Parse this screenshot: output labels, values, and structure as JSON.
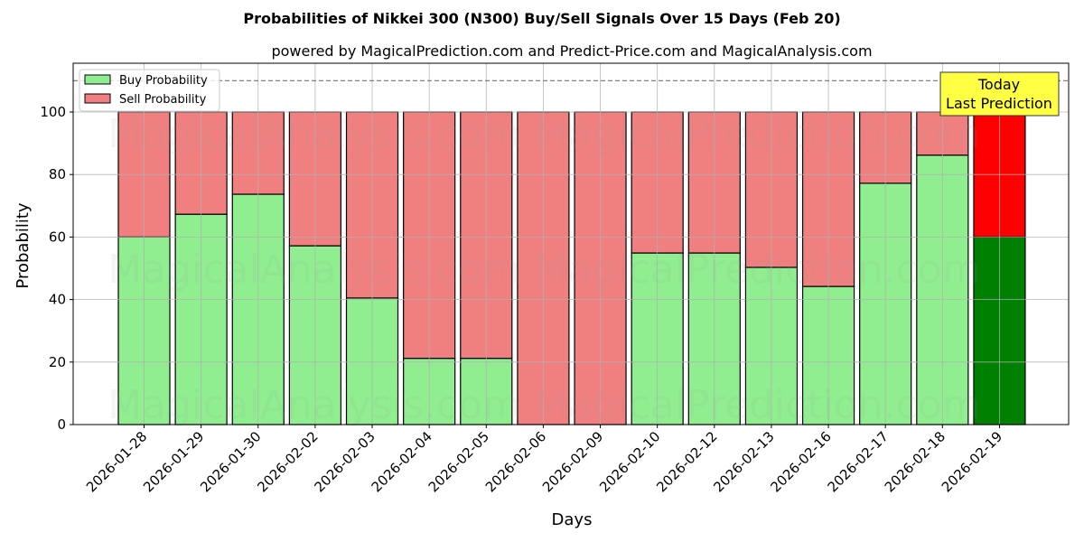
{
  "chart_data": {
    "type": "bar",
    "stacked": true,
    "title": "Probabilities of Nikkei 300 (N300) Buy/Sell Signals Over 15 Days (Feb 20)",
    "subtitle": "powered by MagicalPrediction.com and Predict-Price.com and MagicalAnalysis.com",
    "xlabel": "Days",
    "ylabel": "Probability",
    "ylim": [
      0,
      115
    ],
    "yticks": [
      0,
      20,
      40,
      60,
      80,
      100
    ],
    "grid": true,
    "legend_position": "upper left",
    "reference_line": {
      "y": 110,
      "style": "dashed",
      "color": "#808080"
    },
    "categories": [
      "2026-01-28",
      "2026-01-29",
      "2026-01-30",
      "2026-02-02",
      "2026-02-03",
      "2026-02-04",
      "2026-02-05",
      "2026-02-06",
      "2026-02-09",
      "2026-02-10",
      "2026-02-12",
      "2026-02-13",
      "2026-02-16",
      "2026-02-17",
      "2026-02-18",
      "2026-02-19"
    ],
    "series": [
      {
        "name": "Buy Probability",
        "color": "#90ee90",
        "values": [
          60.0,
          67.3,
          73.7,
          57.2,
          40.5,
          21.2,
          21.2,
          0,
          0,
          54.9,
          54.9,
          50.3,
          44.2,
          77.2,
          86.2,
          60.0
        ]
      },
      {
        "name": "Sell Probability",
        "color": "#f08080",
        "values": [
          40.0,
          32.7,
          26.3,
          42.8,
          59.5,
          78.8,
          78.8,
          100,
          100,
          45.1,
          45.1,
          49.7,
          55.8,
          22.8,
          13.8,
          40.0
        ]
      }
    ],
    "highlight": {
      "index": 15,
      "buy_color": "#008000",
      "sell_color": "#ff0000"
    },
    "annotation": {
      "line1": "Today",
      "line2": "Last Prediction",
      "bg": "#ffff44"
    },
    "watermarks": [
      "MagicalAnalysis.com",
      "MagicalPrediction.com"
    ]
  }
}
